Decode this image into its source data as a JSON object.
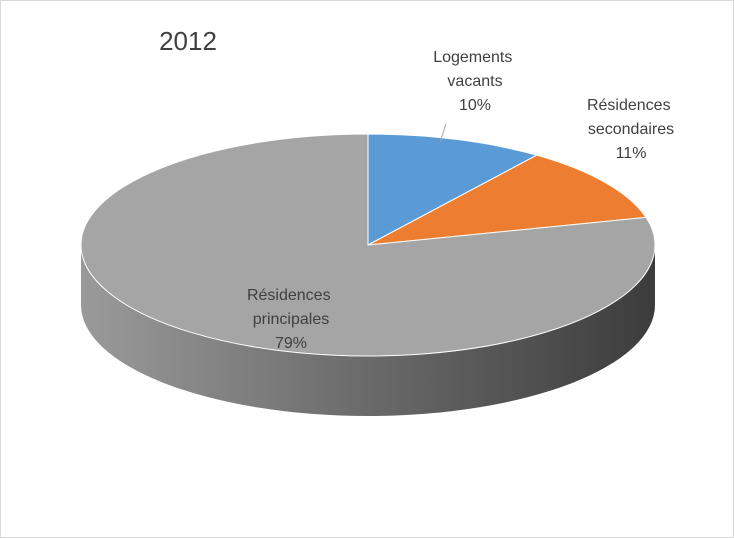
{
  "chart_data": {
    "type": "pie",
    "title": "2012",
    "categories": [
      "Logements vacants",
      "Résidences secondaires",
      "Résidences principales"
    ],
    "values": [
      10,
      11,
      79
    ],
    "value_labels": [
      "10%",
      "11%",
      "79%"
    ],
    "colors": [
      "#5b9bd5",
      "#ed7d31",
      "#a5a5a5"
    ]
  }
}
